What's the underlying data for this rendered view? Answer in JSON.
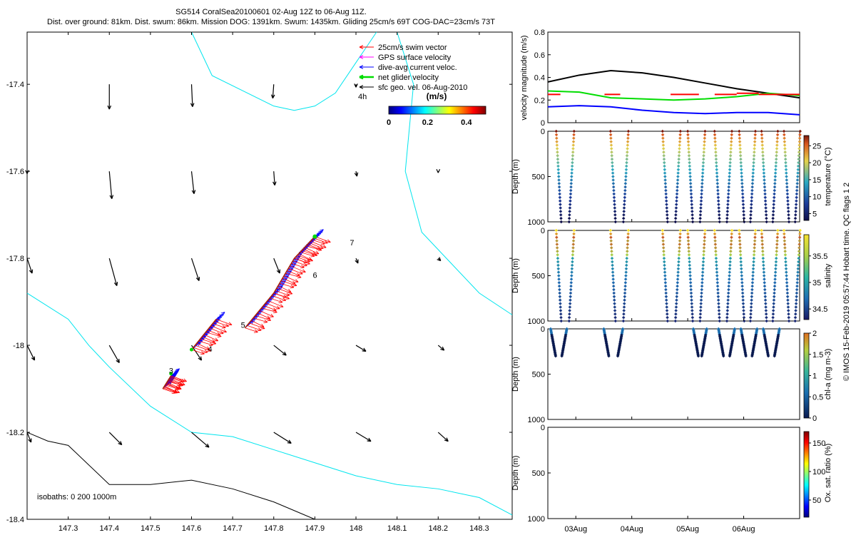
{
  "header": {
    "line1": "SG514 CoralSea20100601 02-Aug 12Z to 06-Aug 11Z.",
    "line2": "Dist. over ground: 81km. Dist. swum: 86km. Mission DOG: 1391km. Swum: 1435km. Gliding 25cm/s 69T COG-DAC=23cm/s 73T"
  },
  "side_note": "© IMOS 15-Feb-2019 05:57:44 Hobart time. QC flags 1  2",
  "colors": {
    "swim": "#ff0000",
    "gps": "#ff00ff",
    "dac": "#0000ff",
    "net": "#00dd00",
    "geo": "#000000",
    "coast": "#00e5ee",
    "isobath1000": "#000000"
  },
  "chart_data": [
    {
      "id": "map",
      "type": "quiver",
      "xlim": [
        147.2,
        148.38
      ],
      "ylim": [
        -18.4,
        -17.28
      ],
      "xticks": [
        "147.3",
        "147.4",
        "147.5",
        "147.6",
        "147.7",
        "147.8",
        "147.9",
        "148",
        "148.1",
        "148.2",
        "148.3"
      ],
      "yticks": [
        "-17.4",
        "-17.6",
        "-17.8",
        "-18",
        "-18.2",
        "-18.4"
      ],
      "legend": [
        {
          "label": "25cm/s swim vector",
          "color": "#ff0000"
        },
        {
          "label": "GPS surface velocity",
          "color": "#ff00ff"
        },
        {
          "label": "dive-avg current veloc.",
          "color": "#0000ff"
        },
        {
          "label": "net glider velocity",
          "color": "#00dd00"
        },
        {
          "label": "sfc geo. vel. 06-Aug-2010",
          "color": "#000000"
        }
      ],
      "legend_scale_label": "4h",
      "colorbar": {
        "title": "(m/s)",
        "ticks": [
          "0",
          "0.2",
          "0.4"
        ],
        "range": [
          0,
          0.5
        ]
      },
      "isobath_label": "isobaths: 0   200  1000m",
      "day_labels": [
        {
          "text": "3",
          "lon": 147.545,
          "lat": -18.065
        },
        {
          "text": "4",
          "lon": 147.64,
          "lat": -18.015
        },
        {
          "text": "5",
          "lon": 147.72,
          "lat": -17.96
        },
        {
          "text": "6",
          "lon": 147.895,
          "lat": -17.845
        },
        {
          "text": "7",
          "lon": 147.985,
          "lat": -17.77
        }
      ],
      "geo_vectors": [
        {
          "lon": 147.4,
          "lat": -17.4,
          "u": 0.0,
          "v": -0.5
        },
        {
          "lon": 147.6,
          "lat": -17.4,
          "u": 0.02,
          "v": -0.45
        },
        {
          "lon": 147.8,
          "lat": -17.4,
          "u": -0.02,
          "v": -0.28
        },
        {
          "lon": 148.0,
          "lat": -17.4,
          "u": 0.0,
          "v": -0.06
        },
        {
          "lon": 147.2,
          "lat": -17.6,
          "u": 0.0,
          "v": -0.05
        },
        {
          "lon": 147.4,
          "lat": -17.6,
          "u": 0.05,
          "v": -0.55
        },
        {
          "lon": 147.6,
          "lat": -17.6,
          "u": 0.05,
          "v": -0.45
        },
        {
          "lon": 147.8,
          "lat": -17.6,
          "u": 0.02,
          "v": -0.28
        },
        {
          "lon": 148.0,
          "lat": -17.6,
          "u": 0.02,
          "v": -0.1
        },
        {
          "lon": 148.2,
          "lat": -17.6,
          "u": 0.0,
          "v": -0.03
        },
        {
          "lon": 147.2,
          "lat": -17.8,
          "u": 0.1,
          "v": -0.3
        },
        {
          "lon": 147.4,
          "lat": -17.8,
          "u": 0.15,
          "v": -0.55
        },
        {
          "lon": 147.6,
          "lat": -17.8,
          "u": 0.15,
          "v": -0.45
        },
        {
          "lon": 147.8,
          "lat": -17.8,
          "u": 0.12,
          "v": -0.3
        },
        {
          "lon": 148.0,
          "lat": -17.8,
          "u": 0.04,
          "v": -0.1
        },
        {
          "lon": 148.2,
          "lat": -17.8,
          "u": 0.05,
          "v": -0.05
        },
        {
          "lon": 147.2,
          "lat": -18.0,
          "u": 0.15,
          "v": -0.3
        },
        {
          "lon": 147.4,
          "lat": -18.0,
          "u": 0.2,
          "v": -0.35
        },
        {
          "lon": 147.6,
          "lat": -18.0,
          "u": 0.2,
          "v": -0.3
        },
        {
          "lon": 147.8,
          "lat": -18.0,
          "u": 0.25,
          "v": -0.2
        },
        {
          "lon": 148.0,
          "lat": -18.0,
          "u": 0.2,
          "v": -0.12
        },
        {
          "lon": 148.2,
          "lat": -18.0,
          "u": 0.12,
          "v": -0.1
        },
        {
          "lon": 147.2,
          "lat": -18.2,
          "u": 0.08,
          "v": -0.2
        },
        {
          "lon": 147.4,
          "lat": -18.2,
          "u": 0.25,
          "v": -0.25
        },
        {
          "lon": 147.6,
          "lat": -18.2,
          "u": 0.35,
          "v": -0.3
        },
        {
          "lon": 147.8,
          "lat": -18.2,
          "u": 0.35,
          "v": -0.22
        },
        {
          "lon": 148.0,
          "lat": -18.2,
          "u": 0.3,
          "v": -0.18
        },
        {
          "lon": 148.2,
          "lat": -18.2,
          "u": 0.2,
          "v": -0.18
        }
      ],
      "glider_track": [
        {
          "lon": 147.53,
          "lat": -18.1
        },
        {
          "lon": 147.55,
          "lat": -18.07
        },
        {
          "lon": 147.6,
          "lat": -18.01
        },
        {
          "lon": 147.66,
          "lat": -17.94
        },
        {
          "lon": 147.73,
          "lat": -17.96
        },
        {
          "lon": 147.8,
          "lat": -17.88
        },
        {
          "lon": 147.85,
          "lat": -17.8
        },
        {
          "lon": 147.9,
          "lat": -17.75
        }
      ],
      "coast_lines": [
        [
          [
            147.6,
            -17.28
          ],
          [
            147.65,
            -17.38
          ],
          [
            147.8,
            -17.45
          ],
          [
            147.85,
            -17.46
          ],
          [
            147.9,
            -17.45
          ],
          [
            147.95,
            -17.42
          ],
          [
            148.0,
            -17.35
          ],
          [
            148.05,
            -17.28
          ]
        ],
        [
          [
            147.2,
            -17.88
          ],
          [
            147.3,
            -17.94
          ],
          [
            147.35,
            -18.0
          ],
          [
            147.4,
            -18.05
          ],
          [
            147.5,
            -18.14
          ],
          [
            147.6,
            -18.2
          ],
          [
            147.7,
            -18.21
          ],
          [
            147.8,
            -18.24
          ],
          [
            147.9,
            -18.27
          ],
          [
            148.0,
            -18.3
          ],
          [
            148.1,
            -18.32
          ],
          [
            148.2,
            -18.33
          ],
          [
            148.3,
            -18.35
          ],
          [
            148.38,
            -18.39
          ]
        ],
        [
          [
            148.1,
            -17.28
          ],
          [
            148.14,
            -17.4
          ],
          [
            148.12,
            -17.6
          ],
          [
            148.16,
            -17.74
          ],
          [
            148.22,
            -17.8
          ],
          [
            148.3,
            -17.88
          ],
          [
            148.38,
            -17.93
          ]
        ]
      ],
      "isobath_1000": [
        [
          147.2,
          -18.2
        ],
        [
          147.25,
          -18.22
        ],
        [
          147.3,
          -18.23
        ],
        [
          147.4,
          -18.32
        ],
        [
          147.5,
          -18.32
        ],
        [
          147.6,
          -18.31
        ],
        [
          147.7,
          -18.33
        ],
        [
          147.8,
          -18.36
        ],
        [
          147.9,
          -18.4
        ]
      ]
    },
    {
      "id": "velocity",
      "type": "line",
      "ylabel": "velocity magnitude (m/s)",
      "ylim": [
        0,
        0.8
      ],
      "yticks": [
        "0",
        "0.2",
        "0.4",
        "0.6",
        "0.8"
      ],
      "xlim": [
        0,
        4
      ],
      "series": [
        {
          "color": "#000000",
          "x": [
            0,
            0.5,
            1,
            1.5,
            2,
            2.5,
            3,
            3.5,
            4
          ],
          "values": [
            0.36,
            0.42,
            0.46,
            0.44,
            0.4,
            0.35,
            0.3,
            0.26,
            0.22
          ]
        },
        {
          "color": "#00dd00",
          "x": [
            0,
            0.5,
            1,
            1.5,
            2,
            2.5,
            3,
            3.5,
            4
          ],
          "values": [
            0.28,
            0.27,
            0.22,
            0.21,
            0.2,
            0.21,
            0.23,
            0.26,
            0.24
          ]
        },
        {
          "color": "#0000ff",
          "x": [
            0,
            0.5,
            1,
            1.5,
            2,
            2.5,
            3,
            3.5,
            4
          ],
          "values": [
            0.14,
            0.15,
            0.14,
            0.11,
            0.09,
            0.08,
            0.09,
            0.09,
            0.07
          ]
        }
      ],
      "swim_bars": [
        {
          "x0": 0.0,
          "x1": 0.2,
          "value": 0.25
        },
        {
          "x0": 0.9,
          "x1": 1.15,
          "value": 0.25
        },
        {
          "x0": 1.95,
          "x1": 2.4,
          "value": 0.25
        },
        {
          "x0": 2.65,
          "x1": 3.0,
          "value": 0.25
        },
        {
          "x0": 3.0,
          "x1": 3.35,
          "value": 0.26
        },
        {
          "x0": 3.35,
          "x1": 3.65,
          "value": 0.25
        },
        {
          "x0": 3.65,
          "x1": 4.0,
          "value": 0.25
        }
      ]
    },
    {
      "id": "temperature",
      "type": "scatter",
      "ylabel": "Depth (m)",
      "clabel": "temperature (°C)",
      "ylim": [
        0,
        1000
      ],
      "yticks": [
        "0",
        "500",
        "1000"
      ],
      "clim": [
        3,
        28
      ],
      "cticks": [
        "5",
        "10",
        "15",
        "20",
        "25"
      ],
      "colorscale": "temperature",
      "profiles": [
        0.15,
        0.38,
        1.12,
        1.35,
        2.05,
        2.28,
        2.5,
        2.72,
        2.98,
        3.2,
        3.42,
        3.62,
        3.82,
        4.02,
        4.22,
        4.42
      ],
      "max_depth": 1000
    },
    {
      "id": "salinity",
      "type": "scatter",
      "ylabel": "Depth (m)",
      "clabel": "salinity",
      "ylim": [
        0,
        1000
      ],
      "yticks": [
        "0",
        "500",
        "1000"
      ],
      "clim": [
        34.3,
        35.9
      ],
      "cticks": [
        "34.5",
        "35",
        "35.5"
      ],
      "colorscale": "salinity",
      "profiles": [
        0.15,
        0.38,
        1.12,
        1.35,
        2.05,
        2.28,
        2.5,
        2.72,
        2.98,
        3.2,
        3.42,
        3.62,
        3.82,
        4.02,
        4.22,
        4.42
      ],
      "max_depth": 1000
    },
    {
      "id": "chla",
      "type": "scatter",
      "ylabel": "Depth (m)",
      "clabel": "chl-a (mg m-3)",
      "ylim": [
        0,
        1000
      ],
      "yticks": [
        "0",
        "500",
        "1000"
      ],
      "clim": [
        0,
        2
      ],
      "cticks": [
        "0",
        "0.5",
        "1",
        "1.5",
        "2"
      ],
      "profiles": [
        0.05,
        0.25,
        1.0,
        1.25,
        2.6,
        2.75,
        3.05,
        3.25,
        3.45,
        3.65,
        3.85,
        4.05
      ],
      "max_depth": 300
    },
    {
      "id": "oxygen",
      "type": "scatter",
      "ylabel": "Depth (m)",
      "clabel": "Ox. sat. ratio (%)",
      "ylim": [
        0,
        1000
      ],
      "yticks": [
        "0",
        "500",
        "1000"
      ],
      "clim": [
        20,
        170
      ],
      "cticks": [
        "50",
        "100",
        "150"
      ],
      "xticks": [
        "03Aug",
        "04Aug",
        "05Aug",
        "06Aug"
      ]
    }
  ]
}
